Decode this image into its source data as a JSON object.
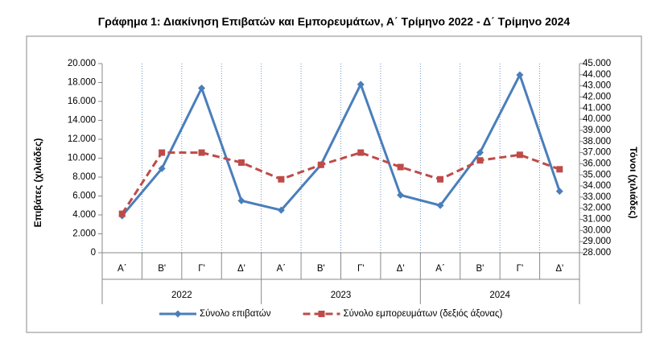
{
  "chart_data": {
    "type": "line",
    "title": "Γράφημα 1: Διακίνηση Επιβατών και Εμπορευμάτων, Α΄ Τρίμηνο 2022 - Δ΄ Τρίμηνο 2024",
    "y_label": "Επιβάτες  (χιλιάδες)",
    "y2_label": "Τόνοι (χιλιάδες)",
    "categories": [
      "Α΄",
      "Β'",
      "Γ'",
      "Δ'",
      "Α΄",
      "Β'",
      "Γ'",
      "Δ'",
      "Α΄",
      "Β'",
      "Γ'",
      "Δ'"
    ],
    "groups": [
      "2022",
      "2023",
      "2024"
    ],
    "series": [
      {
        "name": "Σύνολο επιβατών",
        "color": "#4a7ebb",
        "values": [
          3900,
          8900,
          17400,
          5500,
          4500,
          9300,
          17800,
          6100,
          5000,
          10600,
          18800,
          6500
        ]
      },
      {
        "name": "Σύνολο εμπορευμάτων (δεξιός άξονας)",
        "color": "#be4b48",
        "axis": "y2",
        "values": [
          31500,
          37000,
          37000,
          36100,
          34600,
          35900,
          37000,
          35700,
          34600,
          36300,
          36800,
          35500
        ]
      }
    ],
    "ylim": [
      0,
      20000
    ],
    "yticks": [
      0,
      {
        "value": 2000,
        "label": "2.000"
      },
      {
        "value": 4000,
        "label": "4.000"
      },
      {
        "value": 6000,
        "label": "6.000"
      },
      {
        "value": 8000,
        "label": "8.000"
      },
      {
        "value": 10000,
        "label": "10.000"
      },
      {
        "value": 12000,
        "label": "12.000"
      },
      {
        "value": 14000,
        "label": "14.000"
      },
      {
        "value": 16000,
        "label": "16.000"
      },
      {
        "value": 18000,
        "label": "18.000"
      },
      {
        "value": 20000,
        "label": "20.000"
      }
    ],
    "y2lim": [
      28000,
      45000
    ],
    "y2ticks": [
      {
        "value": 28000,
        "label": "28.000"
      },
      {
        "value": 29000,
        "label": "29.000"
      },
      {
        "value": 30000,
        "label": "30.000"
      },
      {
        "value": 31000,
        "label": "31.000"
      },
      {
        "value": 32000,
        "label": "32.000"
      },
      {
        "value": 33000,
        "label": "33.000"
      },
      {
        "value": 34000,
        "label": "34.000"
      },
      {
        "value": 35000,
        "label": "35.000"
      },
      {
        "value": 36000,
        "label": "36.000"
      },
      {
        "value": 37000,
        "label": "37.000"
      },
      {
        "value": 38000,
        "label": "38.000"
      },
      {
        "value": 39000,
        "label": "39.000"
      },
      {
        "value": 40000,
        "label": "40.000"
      },
      {
        "value": 41000,
        "label": "41.000"
      },
      {
        "value": 42000,
        "label": "42.000"
      },
      {
        "value": 43000,
        "label": "43.000"
      },
      {
        "value": 44000,
        "label": "44.000"
      },
      {
        "value": 45000,
        "label": "45.000"
      }
    ],
    "legend": "bottom"
  }
}
